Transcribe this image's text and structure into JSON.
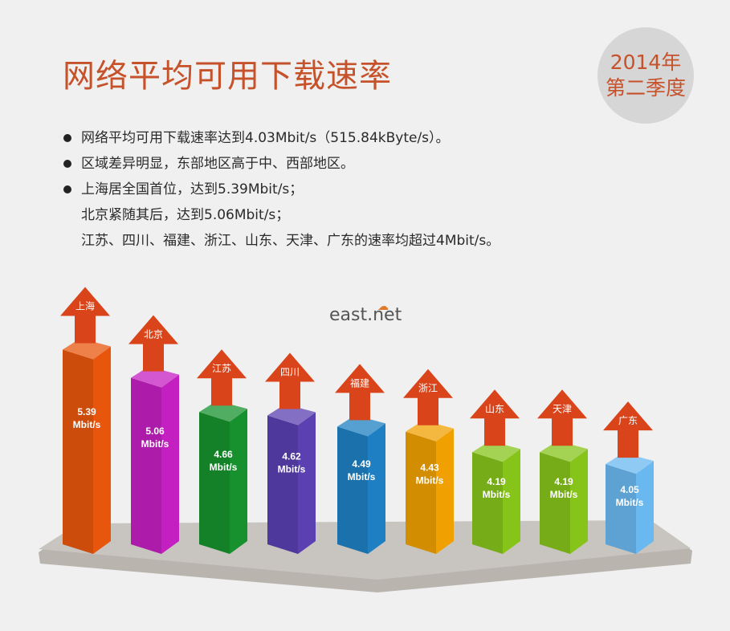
{
  "title": "网络平均可用下载速率",
  "badge": {
    "year": "2014年",
    "quarter": "第二季度"
  },
  "bullets": [
    "网络平均可用下载速率达到4.03Mbit/s（515.84kByte/s）。",
    "区域差异明显，东部地区高于中、西部地区。",
    "上海居全国首位，达到5.39Mbit/s；"
  ],
  "bullet_sub": [
    "北京紧随其后，达到5.06Mbit/s；",
    "江苏、四川、福建、浙江、山东、天津、广东的速率均超过4Mbit/s。"
  ],
  "logo": "east.net",
  "colors": {
    "title": "#c5522a",
    "arrow": "#d9441a",
    "platform": "#c8c4bf"
  },
  "chart_data": {
    "type": "bar",
    "categories": [
      "上海",
      "北京",
      "江苏",
      "四川",
      "福建",
      "浙江",
      "山东",
      "天津",
      "广东"
    ],
    "values": [
      5.39,
      5.06,
      4.66,
      4.62,
      4.49,
      4.43,
      4.19,
      4.19,
      4.05
    ],
    "unit": "Mbit/s",
    "value_labels": [
      "5.39",
      "5.06",
      "4.66",
      "4.62",
      "4.49",
      "4.43",
      "4.19",
      "4.19",
      "4.05"
    ],
    "bar_colors": [
      "#e8560e",
      "#c41fc0",
      "#17912e",
      "#5a40b0",
      "#1e80c2",
      "#f0a000",
      "#86c41a",
      "#86c41a",
      "#6ab8f0"
    ]
  }
}
